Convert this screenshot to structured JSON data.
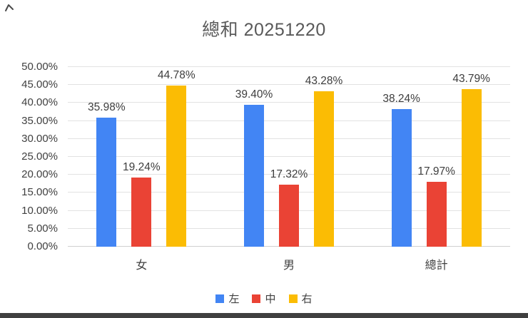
{
  "title": "總和 20251220",
  "chart_data": {
    "type": "bar",
    "title": "總和 20251220",
    "categories": [
      "女",
      "男",
      "總計"
    ],
    "series": [
      {
        "name": "左",
        "color": "#4285F4",
        "values": [
          35.98,
          39.4,
          38.24
        ]
      },
      {
        "name": "中",
        "color": "#EA4335",
        "values": [
          19.24,
          17.32,
          17.97
        ]
      },
      {
        "name": "右",
        "color": "#FBBC04",
        "values": [
          44.78,
          43.28,
          43.79
        ]
      }
    ],
    "data_labels": [
      [
        "35.98%",
        "39.40%",
        "38.24%"
      ],
      [
        "19.24%",
        "17.32%",
        "17.97%"
      ],
      [
        "44.78%",
        "43.28%",
        "43.79%"
      ]
    ],
    "ylim": [
      0,
      50
    ],
    "y_ticks": [
      "0.00%",
      "5.00%",
      "10.00%",
      "15.00%",
      "20.00%",
      "25.00%",
      "30.00%",
      "35.00%",
      "40.00%",
      "45.00%",
      "50.00%"
    ],
    "xlabel": "",
    "ylabel": "",
    "grid": "horizontal",
    "legend_position": "bottom"
  }
}
